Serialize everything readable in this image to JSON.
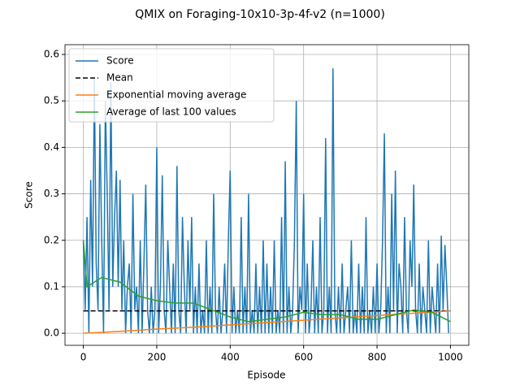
{
  "chart_data": {
    "type": "line",
    "title": "QMIX on Foraging-10x10-3p-4f-v2 (n=1000)",
    "xlabel": "Episode",
    "ylabel": "Score",
    "xlim": [
      -50,
      1050
    ],
    "ylim": [
      -0.026,
      0.621
    ],
    "xticks": [
      0,
      200,
      400,
      600,
      800,
      1000
    ],
    "yticks": [
      {
        "value": 0,
        "label": "0.0"
      },
      0.1,
      0.2,
      0.3,
      0.4,
      0.5,
      0.6
    ],
    "grid": true,
    "legend": "upper left",
    "series": [
      {
        "name": "Score",
        "color": "#1f77b4",
        "x": [
          0,
          5,
          10,
          15,
          20,
          25,
          30,
          35,
          40,
          45,
          50,
          55,
          60,
          65,
          70,
          75,
          80,
          85,
          90,
          95,
          100,
          105,
          110,
          115,
          120,
          125,
          130,
          135,
          140,
          145,
          150,
          155,
          160,
          165,
          170,
          175,
          180,
          185,
          190,
          195,
          200,
          205,
          210,
          215,
          220,
          225,
          230,
          235,
          240,
          245,
          250,
          255,
          260,
          265,
          270,
          275,
          280,
          285,
          290,
          295,
          300,
          305,
          310,
          315,
          320,
          325,
          330,
          335,
          340,
          345,
          350,
          355,
          360,
          365,
          370,
          375,
          380,
          385,
          390,
          395,
          400,
          405,
          410,
          415,
          420,
          425,
          430,
          435,
          440,
          445,
          450,
          455,
          460,
          465,
          470,
          475,
          480,
          485,
          490,
          495,
          500,
          505,
          510,
          515,
          520,
          525,
          530,
          535,
          540,
          545,
          550,
          555,
          560,
          565,
          570,
          575,
          580,
          585,
          590,
          595,
          600,
          605,
          610,
          615,
          620,
          625,
          630,
          635,
          640,
          645,
          650,
          655,
          660,
          665,
          670,
          675,
          680,
          685,
          690,
          695,
          700,
          705,
          710,
          715,
          720,
          725,
          730,
          735,
          740,
          745,
          750,
          755,
          760,
          765,
          770,
          775,
          780,
          785,
          790,
          795,
          800,
          805,
          810,
          815,
          820,
          825,
          830,
          835,
          840,
          845,
          850,
          855,
          860,
          865,
          870,
          875,
          880,
          885,
          890,
          895,
          900,
          905,
          910,
          915,
          920,
          925,
          930,
          935,
          940,
          945,
          950,
          955,
          960,
          965,
          970,
          975,
          980,
          985,
          990,
          995
        ],
        "values": [
          0.2,
          0.05,
          0.25,
          0.0,
          0.33,
          0.1,
          0.55,
          0.15,
          0.05,
          0.45,
          0.2,
          0.0,
          0.5,
          0.3,
          0.05,
          0.54,
          0.1,
          0.25,
          0.35,
          0.1,
          0.33,
          0.05,
          0.2,
          0.0,
          0.1,
          0.15,
          0.0,
          0.3,
          0.05,
          0.1,
          0.0,
          0.2,
          0.0,
          0.15,
          0.32,
          0.05,
          0.0,
          0.1,
          0.0,
          0.05,
          0.4,
          0.0,
          0.1,
          0.34,
          0.05,
          0.0,
          0.2,
          0.1,
          0.0,
          0.15,
          0.0,
          0.36,
          0.05,
          0.0,
          0.25,
          0.1,
          0.0,
          0.2,
          0.05,
          0.25,
          0.0,
          0.1,
          0.0,
          0.15,
          0.0,
          0.05,
          0.0,
          0.2,
          0.0,
          0.1,
          0.0,
          0.3,
          0.05,
          0.0,
          0.1,
          0.0,
          0.05,
          0.15,
          0.0,
          0.2,
          0.35,
          0.0,
          0.1,
          0.0,
          0.05,
          0.0,
          0.25,
          0.0,
          0.1,
          0.0,
          0.3,
          0.0,
          0.05,
          0.0,
          0.15,
          0.0,
          0.1,
          0.0,
          0.2,
          0.0,
          0.15,
          0.0,
          0.1,
          0.0,
          0.2,
          0.0,
          0.05,
          0.0,
          0.25,
          0.0,
          0.37,
          0.0,
          0.1,
          0.0,
          0.05,
          0.2,
          0.5,
          0.0,
          0.1,
          0.05,
          0.3,
          0.0,
          0.15,
          0.0,
          0.05,
          0.2,
          0.0,
          0.1,
          0.0,
          0.25,
          0.0,
          0.05,
          0.42,
          0.0,
          0.1,
          0.0,
          0.57,
          0.05,
          0.0,
          0.1,
          0.0,
          0.15,
          0.0,
          0.05,
          0.1,
          0.0,
          0.2,
          0.0,
          0.05,
          0.0,
          0.15,
          0.0,
          0.1,
          0.0,
          0.25,
          0.0,
          0.05,
          0.0,
          0.1,
          0.0,
          0.15,
          0.0,
          0.05,
          0.2,
          0.43,
          0.0,
          0.1,
          0.0,
          0.3,
          0.05,
          0.35,
          0.0,
          0.15,
          0.1,
          0.0,
          0.25,
          0.05,
          0.0,
          0.2,
          0.1,
          0.32,
          0.05,
          0.0,
          0.15,
          0.0,
          0.1,
          0.05,
          0.0,
          0.2,
          0.0,
          0.1,
          0.05,
          0.0,
          0.15,
          0.0,
          0.21,
          0.05,
          0.19,
          0.1,
          0.0
        ]
      },
      {
        "name": "Mean",
        "color": "#000000",
        "dash": true,
        "x": [
          0,
          1000
        ],
        "values": [
          0.048,
          0.048
        ]
      },
      {
        "name": "Exponential moving average",
        "color": "#ff7f0e",
        "x": [
          0,
          100,
          200,
          300,
          400,
          500,
          600,
          700,
          800,
          900,
          1000
        ],
        "values": [
          0,
          0.004,
          0.009,
          0.013,
          0.018,
          0.023,
          0.028,
          0.033,
          0.038,
          0.043,
          0.048
        ]
      },
      {
        "name": "Average of last 100 values",
        "color": "#2ca02c",
        "x": [
          0,
          10,
          50,
          100,
          150,
          200,
          250,
          300,
          350,
          400,
          450,
          500,
          550,
          600,
          650,
          700,
          750,
          800,
          850,
          900,
          950,
          1000
        ],
        "values": [
          0.2,
          0.1,
          0.12,
          0.11,
          0.08,
          0.07,
          0.065,
          0.065,
          0.05,
          0.035,
          0.025,
          0.03,
          0.035,
          0.045,
          0.04,
          0.04,
          0.03,
          0.03,
          0.04,
          0.05,
          0.045,
          0.025
        ]
      }
    ]
  }
}
